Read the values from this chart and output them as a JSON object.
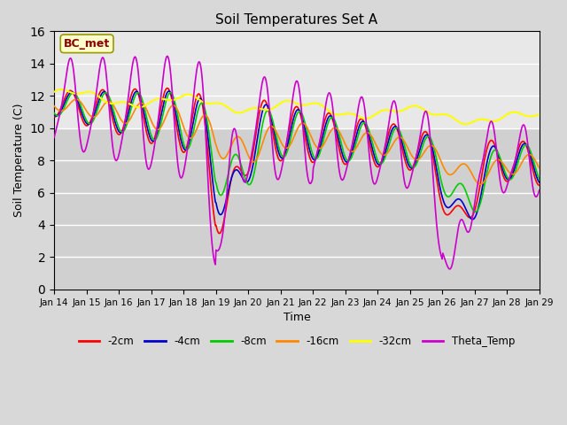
{
  "title": "Soil Temperatures Set A",
  "xlabel": "Time",
  "ylabel": "Soil Temperature (C)",
  "ylim": [
    0,
    16
  ],
  "yticks": [
    0,
    2,
    4,
    6,
    8,
    10,
    12,
    14,
    16
  ],
  "fig_bg_color": "#d8d8d8",
  "plot_bg_upper": "#e8e8e8",
  "plot_bg_lower": "#d0d0d0",
  "annotation_text": "BC_met",
  "annotation_color": "#8B0000",
  "annotation_bg": "#ffffcc",
  "series": {
    "-2cm": {
      "color": "#ff0000",
      "lw": 1.2
    },
    "-4cm": {
      "color": "#0000cc",
      "lw": 1.2
    },
    "-8cm": {
      "color": "#00cc00",
      "lw": 1.2
    },
    "-16cm": {
      "color": "#ff8800",
      "lw": 1.2
    },
    "-32cm": {
      "color": "#ffff00",
      "lw": 1.5
    },
    "Theta_Temp": {
      "color": "#cc00cc",
      "lw": 1.2
    }
  },
  "x_labels": [
    "Jan 14",
    "Jan 15",
    "Jan 16",
    "Jan 17",
    "Jan 18",
    "Jan 19",
    "Jan 20",
    "Jan 21",
    "Jan 22",
    "Jan 23",
    "Jan 24",
    "Jan 25",
    "Jan 26",
    "Jan 27",
    "Jan 28",
    "Jan 29"
  ],
  "num_points": 720,
  "days": 15
}
